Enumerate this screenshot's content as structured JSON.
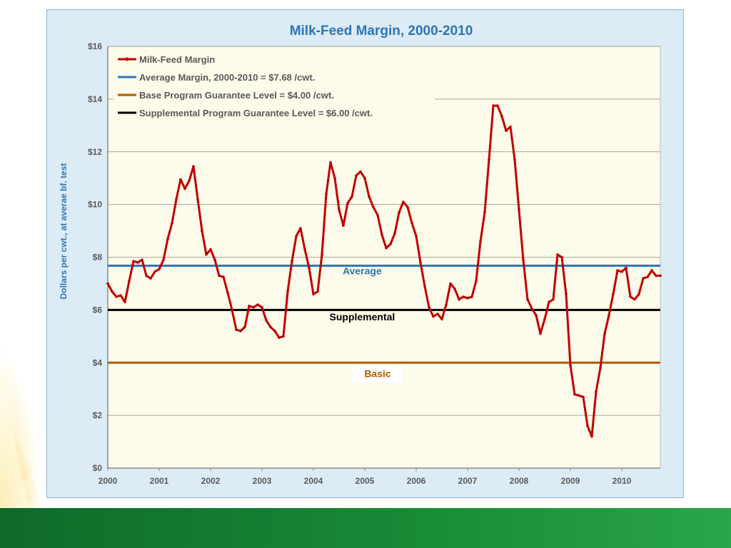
{
  "colors": {
    "margin_line": "#c00000",
    "average_line": "#2e74b5",
    "base_line": "#b35a00",
    "supplemental_line": "#000000",
    "plot_bg": "#fdfbe9",
    "title": "#2e74b5"
  },
  "chart_data": {
    "type": "line",
    "title": "Milk-Feed Margin, 2000-2010",
    "xlabel": "",
    "ylabel": "Dollars per cwt., at averae bf. test",
    "x_ticks": [
      "2000",
      "2001",
      "2002",
      "2003",
      "2004",
      "2005",
      "2006",
      "2007",
      "2008",
      "2009",
      "2010"
    ],
    "xlim": [
      2000,
      2010.75
    ],
    "ylim": [
      0,
      16
    ],
    "y_ticks": [
      "$0",
      "$2",
      "$4",
      "$6",
      "$8",
      "$10",
      "$12",
      "$14",
      "$16"
    ],
    "grid": true,
    "legend_position": "top-left",
    "series": [
      {
        "name": "Milk-Feed Margin",
        "x": [
          2000.0,
          2000.083,
          2000.167,
          2000.25,
          2000.333,
          2000.417,
          2000.5,
          2000.583,
          2000.667,
          2000.75,
          2000.833,
          2000.917,
          2001.0,
          2001.083,
          2001.167,
          2001.25,
          2001.333,
          2001.417,
          2001.5,
          2001.583,
          2001.667,
          2001.75,
          2001.833,
          2001.917,
          2002.0,
          2002.083,
          2002.167,
          2002.25,
          2002.333,
          2002.417,
          2002.5,
          2002.583,
          2002.667,
          2002.75,
          2002.833,
          2002.917,
          2003.0,
          2003.083,
          2003.167,
          2003.25,
          2003.333,
          2003.417,
          2003.5,
          2003.583,
          2003.667,
          2003.75,
          2003.833,
          2003.917,
          2004.0,
          2004.083,
          2004.167,
          2004.25,
          2004.333,
          2004.417,
          2004.5,
          2004.583,
          2004.667,
          2004.75,
          2004.833,
          2004.917,
          2005.0,
          2005.083,
          2005.167,
          2005.25,
          2005.333,
          2005.417,
          2005.5,
          2005.583,
          2005.667,
          2005.75,
          2005.833,
          2005.917,
          2006.0,
          2006.083,
          2006.167,
          2006.25,
          2006.333,
          2006.417,
          2006.5,
          2006.583,
          2006.667,
          2006.75,
          2006.833,
          2006.917,
          2007.0,
          2007.083,
          2007.167,
          2007.25,
          2007.333,
          2007.417,
          2007.5,
          2007.583,
          2007.667,
          2007.75,
          2007.833,
          2007.917,
          2008.0,
          2008.083,
          2008.167,
          2008.25,
          2008.333,
          2008.417,
          2008.5,
          2008.583,
          2008.667,
          2008.75,
          2008.833,
          2008.917,
          2009.0,
          2009.083,
          2009.167,
          2009.25,
          2009.333,
          2009.417,
          2009.5,
          2009.583,
          2009.667,
          2009.75,
          2009.833,
          2009.917,
          2010.0,
          2010.083,
          2010.167,
          2010.25,
          2010.333,
          2010.417,
          2010.5,
          2010.583,
          2010.667,
          2010.75
        ],
        "values": [
          7.0,
          6.7,
          6.5,
          6.55,
          6.3,
          7.1,
          7.85,
          7.8,
          7.9,
          7.3,
          7.2,
          7.45,
          7.55,
          7.9,
          8.7,
          9.3,
          10.2,
          10.95,
          10.6,
          10.9,
          11.45,
          10.2,
          9.0,
          8.1,
          8.3,
          7.9,
          7.3,
          7.25,
          6.65,
          6.0,
          5.25,
          5.2,
          5.35,
          6.15,
          6.1,
          6.2,
          6.1,
          5.6,
          5.35,
          5.2,
          4.95,
          5.0,
          6.7,
          7.85,
          8.8,
          9.1,
          8.3,
          7.6,
          6.6,
          6.7,
          8.1,
          10.4,
          11.6,
          11.0,
          9.8,
          9.2,
          10.05,
          10.3,
          11.1,
          11.25,
          11.0,
          10.3,
          9.9,
          9.6,
          8.85,
          8.35,
          8.5,
          8.9,
          9.7,
          10.1,
          9.9,
          9.3,
          8.8,
          7.8,
          6.9,
          6.1,
          5.75,
          5.85,
          5.65,
          6.2,
          7.0,
          6.8,
          6.4,
          6.5,
          6.45,
          6.5,
          7.1,
          8.6,
          9.7,
          11.7,
          13.75,
          13.75,
          13.35,
          12.8,
          12.95,
          11.7,
          9.8,
          7.9,
          6.4,
          6.05,
          5.8,
          5.1,
          5.65,
          6.3,
          6.4,
          8.1,
          8.0,
          6.6,
          3.9,
          2.8,
          2.75,
          2.7,
          1.6,
          1.2,
          2.9,
          3.8,
          5.1,
          5.8,
          6.6,
          7.5,
          7.45,
          7.6,
          6.5,
          6.4,
          6.6,
          7.2,
          7.25,
          7.5,
          7.3,
          7.3
        ]
      },
      {
        "name": "Average Margin, 2000-2010  = $7.68 /cwt.",
        "values": [
          7.68
        ]
      },
      {
        "name": "Base Program Guarantee Level = $4.00 /cwt.",
        "values": [
          4.0
        ]
      },
      {
        "name": "Supplemental Program Guarantee Level = $6.00 /cwt.",
        "values": [
          6.0
        ]
      }
    ],
    "annotations": [
      {
        "text": "Average",
        "x": 2004.95,
        "y": 7.35
      },
      {
        "text": "Supplemental",
        "x": 2004.95,
        "y": 5.6
      },
      {
        "text": "Basic",
        "x": 2005.25,
        "y": 3.45
      }
    ]
  }
}
